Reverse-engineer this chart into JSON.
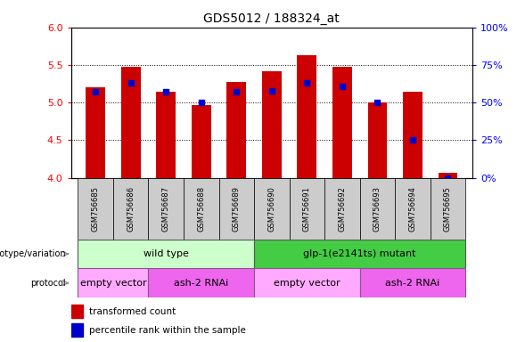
{
  "title": "GDS5012 / 188324_at",
  "samples": [
    "GSM756685",
    "GSM756686",
    "GSM756687",
    "GSM756688",
    "GSM756689",
    "GSM756690",
    "GSM756691",
    "GSM756692",
    "GSM756693",
    "GSM756694",
    "GSM756695"
  ],
  "transformed_counts": [
    5.2,
    5.48,
    5.15,
    4.97,
    5.28,
    5.42,
    5.63,
    5.48,
    5.0,
    5.15,
    4.07
  ],
  "percentile_ranks": [
    57,
    63,
    57,
    50,
    57,
    58,
    63,
    61,
    50,
    25,
    0
  ],
  "ylim_left": [
    4.0,
    6.0
  ],
  "ylim_right": [
    0,
    100
  ],
  "yticks_left": [
    4.0,
    4.5,
    5.0,
    5.5,
    6.0
  ],
  "yticks_right": [
    0,
    25,
    50,
    75,
    100
  ],
  "bar_color": "#cc0000",
  "dot_color": "#0000cc",
  "genotype_groups": [
    {
      "label": "wild type",
      "start": 0,
      "end": 4,
      "color": "#ccffcc"
    },
    {
      "label": "glp-1(e2141ts) mutant",
      "start": 5,
      "end": 10,
      "color": "#44cc44"
    }
  ],
  "protocol_groups": [
    {
      "label": "empty vector",
      "start": 0,
      "end": 1,
      "color": "#ffaaff"
    },
    {
      "label": "ash-2 RNAi",
      "start": 2,
      "end": 4,
      "color": "#ee66ee"
    },
    {
      "label": "empty vector",
      "start": 5,
      "end": 7,
      "color": "#ffaaff"
    },
    {
      "label": "ash-2 RNAi",
      "start": 8,
      "end": 10,
      "color": "#ee66ee"
    }
  ],
  "legend_red": "transformed count",
  "legend_blue": "percentile rank within the sample",
  "genotype_label": "genotype/variation",
  "protocol_label": "protocol",
  "bar_width": 0.55,
  "dot_size": 25,
  "grid_dotted": [
    4.5,
    5.0,
    5.5
  ],
  "xtick_label_bgcolor": "#cccccc"
}
